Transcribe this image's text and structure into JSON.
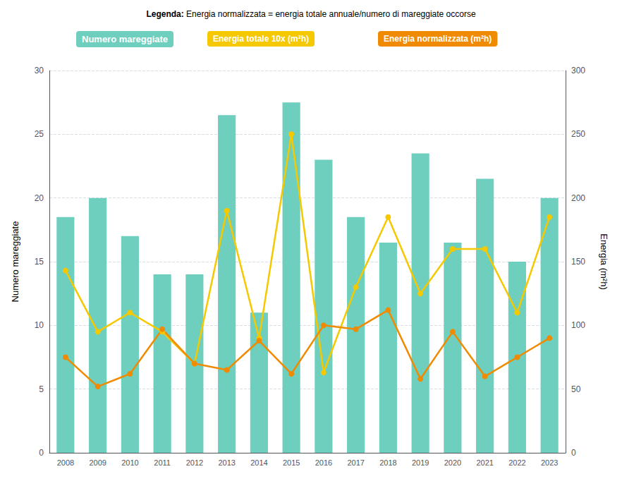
{
  "chart_data": {
    "type": "bar",
    "categories": [
      "2008",
      "2009",
      "2010",
      "2011",
      "2012",
      "2013",
      "2014",
      "2015",
      "2016",
      "2017",
      "2018",
      "2019",
      "2020",
      "2021",
      "2022",
      "2023"
    ],
    "ylabel": "Numero mareggiate",
    "y2label": "Energia (m²h)",
    "ylim": [
      0,
      30
    ],
    "yticks": [
      0,
      5,
      10,
      15,
      20,
      25,
      30
    ],
    "y2lim": [
      0,
      300
    ],
    "y2ticks": [
      0,
      50,
      100,
      150,
      200,
      250,
      300
    ],
    "grid": true,
    "annotations": [
      "Legenda:",
      "Energia normalizzata = energia totale annuale/numero di mareggiate occorse"
    ],
    "series": [
      {
        "name": "Numero mareggiate",
        "type": "bar",
        "color": "#6ecfbf",
        "values": [
          18.5,
          20,
          17,
          14,
          14,
          26.5,
          11,
          27.5,
          23,
          18.5,
          16.5,
          23.5,
          16.5,
          21.5,
          15,
          20
        ]
      },
      {
        "name": "Energia totale 10x (m²h)",
        "type": "line",
        "axis": "y2",
        "color": "#f5c800",
        "marker": "circle",
        "values": [
          143,
          95,
          110,
          95,
          70,
          190,
          90,
          250,
          63,
          130,
          185,
          125,
          160,
          160,
          110,
          185
        ]
      },
      {
        "name": "Energia normalizzata (m²h)",
        "type": "line",
        "axis": "y2",
        "color": "#f08a00",
        "marker": "circle",
        "values": [
          75,
          52,
          62,
          97,
          70,
          65,
          88,
          62,
          100,
          97,
          112,
          58,
          95,
          60,
          75,
          90
        ]
      }
    ]
  }
}
